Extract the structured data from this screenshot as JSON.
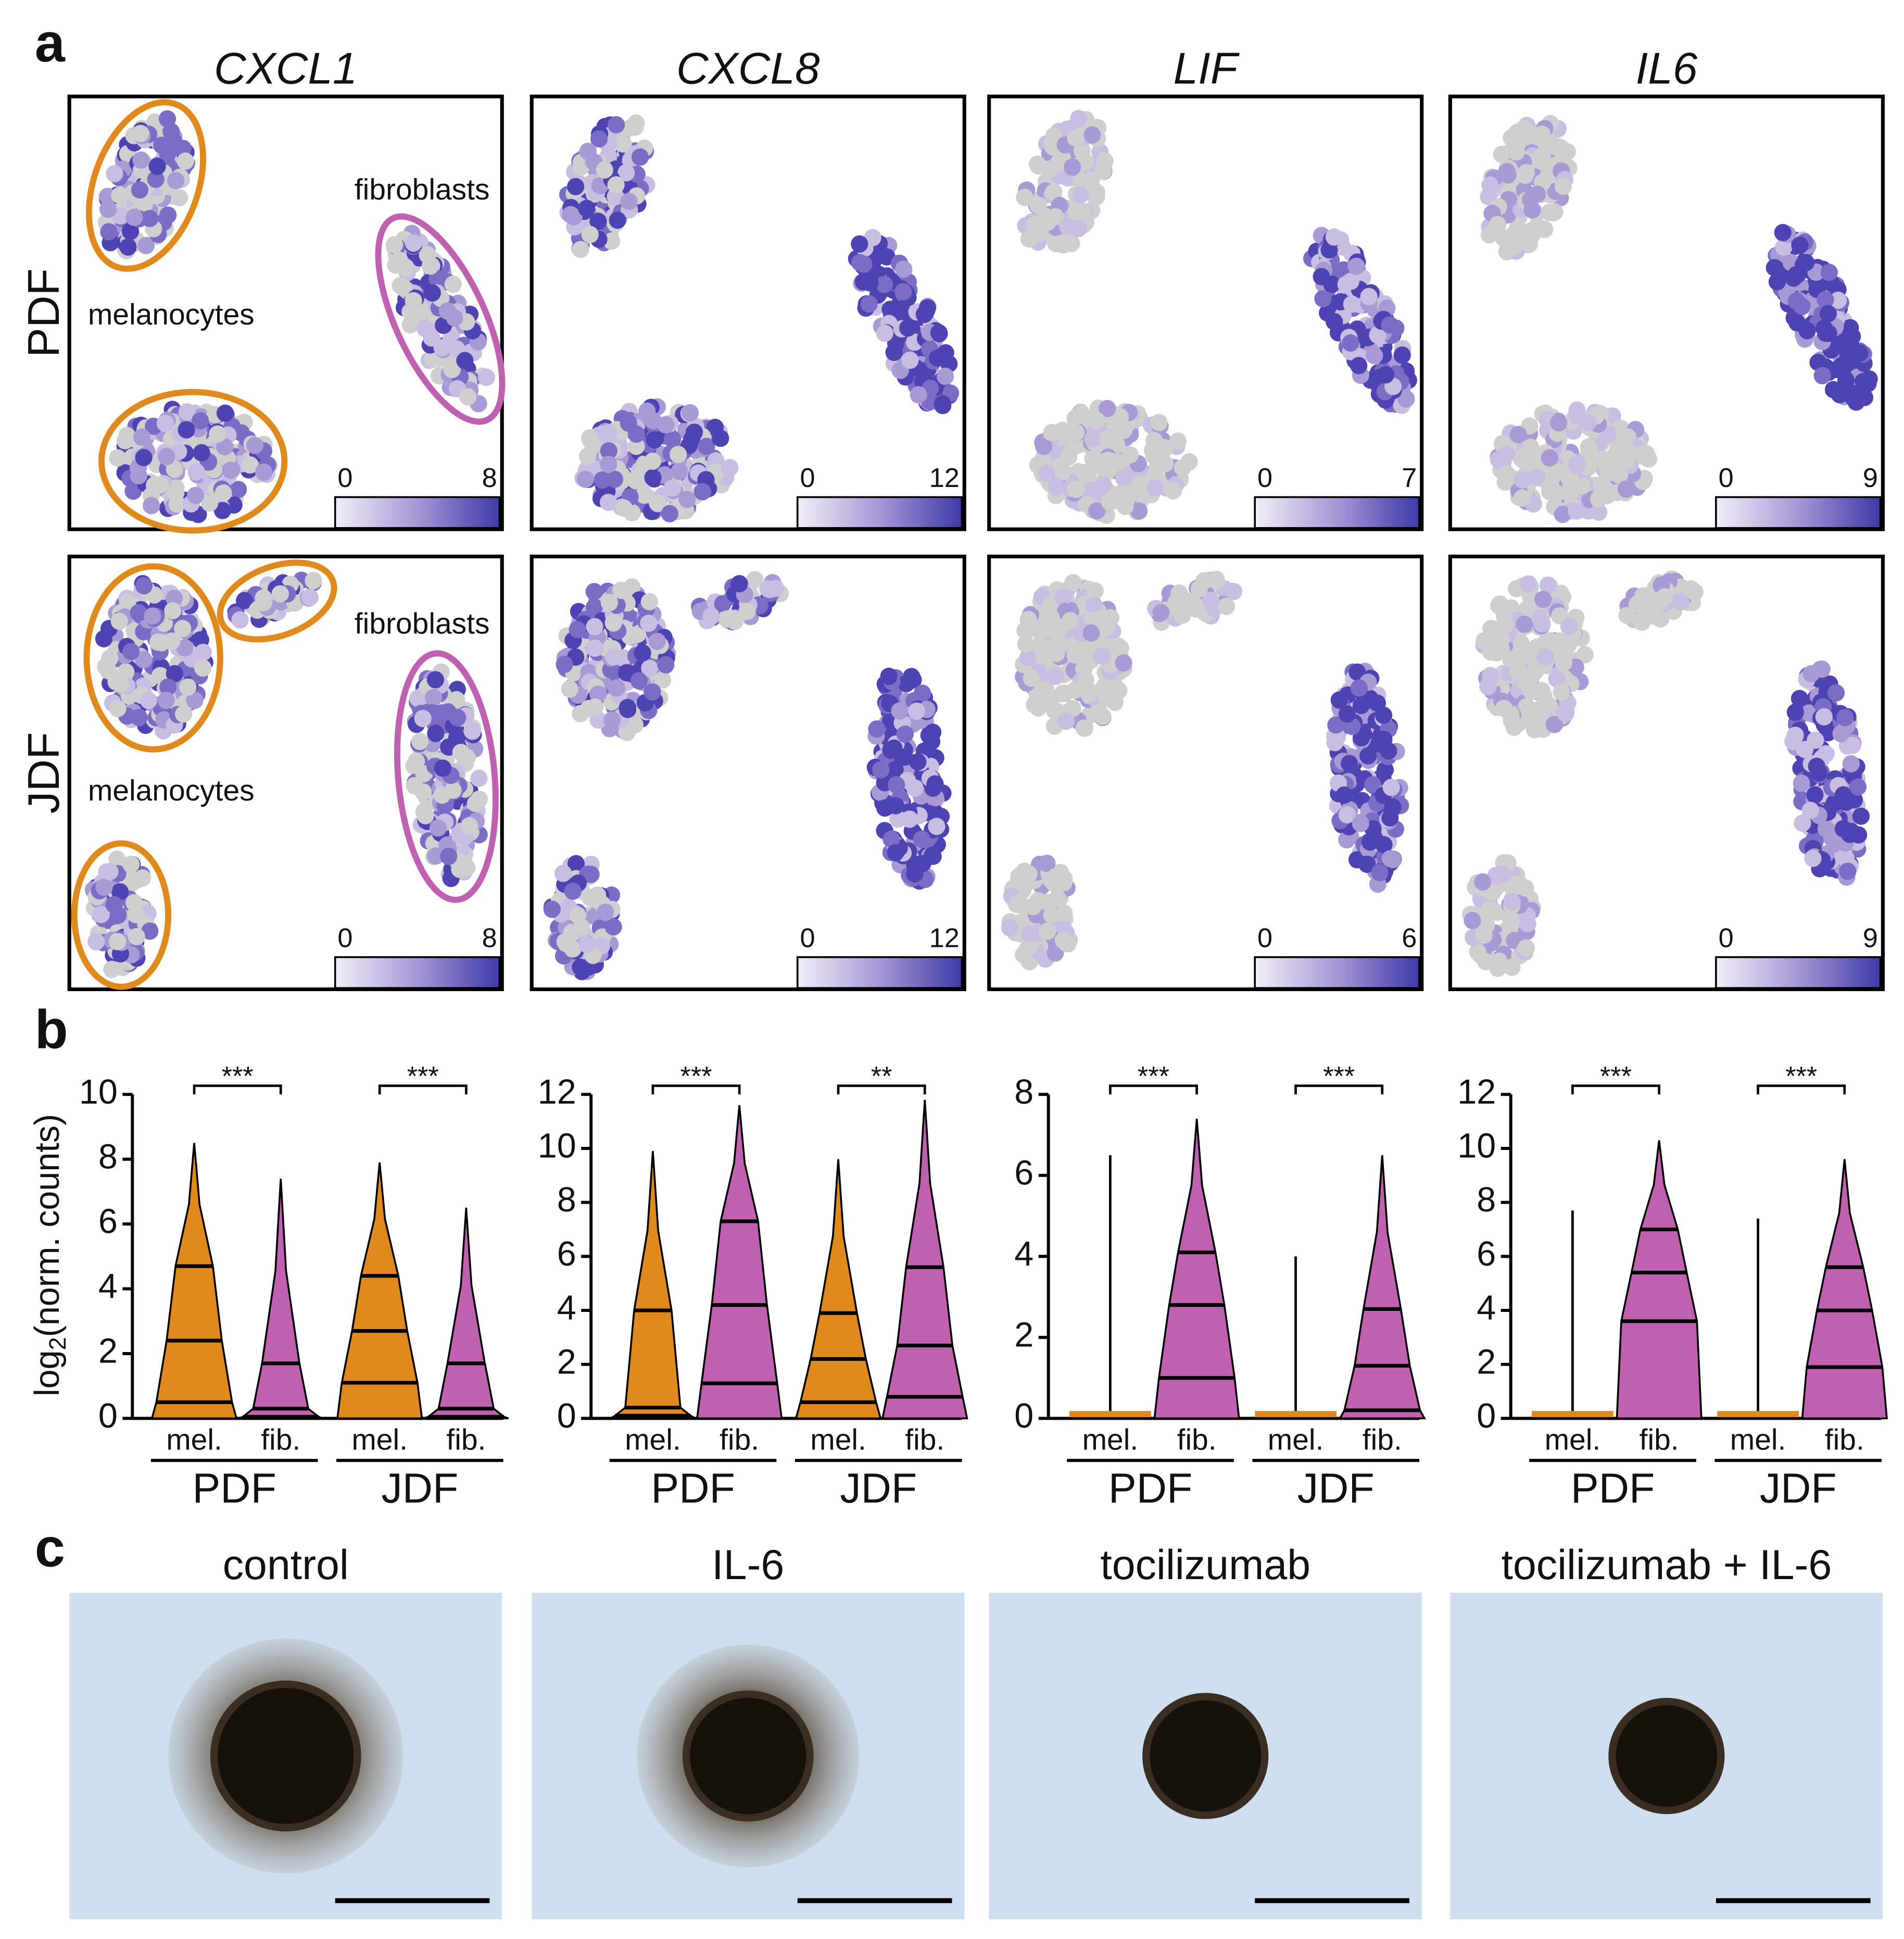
{
  "panel_labels": [
    "a",
    "b",
    "c"
  ],
  "umap": {
    "genes": [
      "CXCL1",
      "CXCL8",
      "LIF",
      "IL6"
    ],
    "rows": [
      "PDF",
      "JDF"
    ],
    "cluster_labels": [
      "melanocytes",
      "fibroblasts"
    ],
    "colorbar_min": 0,
    "colorbar_max": [
      [
        8,
        12,
        7,
        9
      ],
      [
        8,
        12,
        6,
        9
      ]
    ]
  },
  "chart_data": [
    {
      "type": "violin",
      "ylabel": {
        "base": "log",
        "sub": "2",
        "rest": "(norm. counts)"
      },
      "ylim": [
        0,
        10
      ],
      "yticks": [
        0,
        2,
        4,
        6,
        8,
        10
      ],
      "categories": [
        "mel.",
        "fib.",
        "mel.",
        "fib."
      ],
      "groups": [
        "PDF",
        "JDF"
      ],
      "colors": [
        "#e08a1e",
        "#c060b0",
        "#e08a1e",
        "#c060b0"
      ],
      "max": [
        8.5,
        7.4,
        7.9,
        6.5
      ],
      "quartiles": [
        [
          0.5,
          2.4,
          4.7
        ],
        [
          0.05,
          0.3,
          1.7
        ],
        [
          1.1,
          2.7,
          4.4
        ],
        [
          0.05,
          0.3,
          1.7
        ]
      ],
      "significance": [
        "***",
        "***"
      ]
    },
    {
      "type": "violin",
      "ylim": [
        0,
        12
      ],
      "yticks": [
        0,
        2,
        4,
        6,
        8,
        10,
        12
      ],
      "categories": [
        "mel.",
        "fib.",
        "mel.",
        "fib."
      ],
      "groups": [
        "PDF",
        "JDF"
      ],
      "colors": [
        "#e08a1e",
        "#c060b0",
        "#e08a1e",
        "#c060b0"
      ],
      "max": [
        9.9,
        11.6,
        9.6,
        11.8
      ],
      "quartiles": [
        [
          0.1,
          0.4,
          4.0
        ],
        [
          1.3,
          4.2,
          7.3
        ],
        [
          0.6,
          2.2,
          3.9
        ],
        [
          0.8,
          2.7,
          5.6
        ]
      ],
      "significance": [
        "***",
        "**"
      ]
    },
    {
      "type": "violin",
      "ylim": [
        0,
        8
      ],
      "yticks": [
        0,
        2,
        4,
        6,
        8
      ],
      "categories": [
        "mel.",
        "fib.",
        "mel.",
        "fib."
      ],
      "groups": [
        "PDF",
        "JDF"
      ],
      "colors": [
        "#e08a1e",
        "#c060b0",
        "#e08a1e",
        "#c060b0"
      ],
      "max": [
        6.5,
        7.4,
        4.0,
        6.5
      ],
      "quartiles": [
        [
          0,
          0,
          0
        ],
        [
          1.0,
          2.8,
          4.1
        ],
        [
          0,
          0,
          0
        ],
        [
          0.2,
          1.3,
          2.7
        ]
      ],
      "significance": [
        "***",
        "***"
      ]
    },
    {
      "type": "violin",
      "ylim": [
        0,
        12
      ],
      "yticks": [
        0,
        2,
        4,
        6,
        8,
        10,
        12
      ],
      "categories": [
        "mel.",
        "fib.",
        "mel.",
        "fib."
      ],
      "groups": [
        "PDF",
        "JDF"
      ],
      "colors": [
        "#e08a1e",
        "#c060b0",
        "#e08a1e",
        "#c060b0"
      ],
      "max": [
        7.7,
        10.3,
        7.4,
        9.6
      ],
      "quartiles": [
        [
          0,
          0,
          0
        ],
        [
          3.6,
          5.4,
          7.0
        ],
        [
          0,
          0,
          0
        ],
        [
          1.9,
          4.0,
          5.6
        ]
      ],
      "significance": [
        "***",
        "***"
      ]
    }
  ],
  "images": {
    "titles": [
      "control",
      "IL-6",
      "tocilizumab",
      "tocilizumab + IL-6"
    ]
  }
}
